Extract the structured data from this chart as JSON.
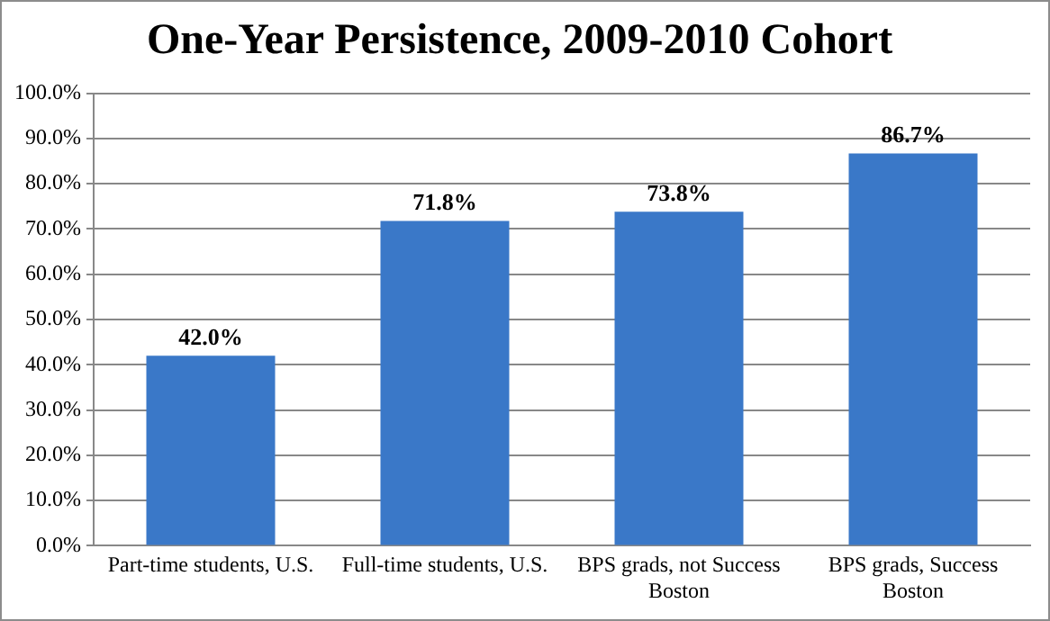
{
  "chart_data": {
    "type": "bar",
    "title": "One-Year Persistence, 2009-2010 Cohort",
    "categories": [
      "Part-time students, U.S.",
      "Full-time students, U.S.",
      "BPS grads, not Success Boston",
      "BPS grads, Success Boston"
    ],
    "values": [
      42.0,
      71.8,
      73.8,
      86.7
    ],
    "value_labels": [
      "42.0%",
      "71.8%",
      "73.8%",
      "86.7%"
    ],
    "color": "#3a78c8",
    "ylim": [
      0,
      100
    ],
    "yticks": [
      {
        "value": 0,
        "label": "0.0%"
      },
      {
        "value": 10,
        "label": "10.0%"
      },
      {
        "value": 20,
        "label": "20.0%"
      },
      {
        "value": 30,
        "label": "30.0%"
      },
      {
        "value": 40,
        "label": "40.0%"
      },
      {
        "value": 50,
        "label": "50.0%"
      },
      {
        "value": 60,
        "label": "60.0%"
      },
      {
        "value": 70,
        "label": "70.0%"
      },
      {
        "value": 80,
        "label": "80.0%"
      },
      {
        "value": 90,
        "label": "90.0%"
      },
      {
        "value": 100,
        "label": "100.0%"
      }
    ],
    "grid": "y",
    "legend": false
  }
}
